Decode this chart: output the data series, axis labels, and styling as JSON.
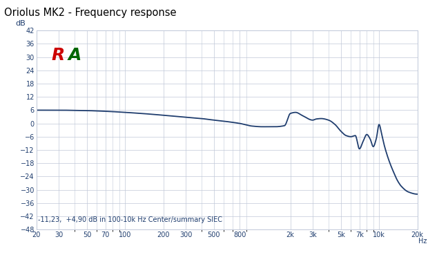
{
  "title": "Oriolus MK2 - Frequency response",
  "ylabel": "dB",
  "xlabel": "Hz",
  "annotation": "-11,23,  +4,90 dB in 100-10k Hz Center/summary SIEC",
  "line_color": "#1f3d6e",
  "background_color": "#ffffff",
  "grid_color": "#c0c8d8",
  "title_color": "#000000",
  "label_color": "#1f3d6e",
  "tick_color": "#1f3d6e",
  "ylim": [
    -48,
    42
  ],
  "yticks": [
    -48,
    -42,
    -36,
    -30,
    -24,
    -18,
    -12,
    -6,
    0,
    6,
    12,
    18,
    24,
    30,
    36,
    42
  ],
  "x_tick_positions": [
    20,
    30,
    50,
    70,
    100,
    200,
    300,
    500,
    800,
    2000,
    3000,
    5000,
    7000,
    10000,
    20000
  ],
  "x_tick_labels": [
    "20",
    "30",
    "50",
    "70",
    "100",
    "200",
    "300",
    "500",
    "800",
    "2k",
    "3k",
    "5k",
    "7k",
    "10k",
    "20k"
  ],
  "freq_points": [
    20,
    25,
    30,
    40,
    50,
    70,
    100,
    150,
    200,
    300,
    400,
    500,
    600,
    700,
    800,
    1000,
    1200,
    1500,
    1800,
    2000,
    2200,
    2500,
    3000,
    3200,
    3500,
    4000,
    4500,
    5000,
    5500,
    6000,
    6500,
    7000,
    7500,
    8000,
    8500,
    9000,
    9500,
    10000,
    10500,
    11000,
    12000,
    13000,
    14000,
    15000,
    17000,
    20000
  ],
  "db_points": [
    6.0,
    6.0,
    6.0,
    5.9,
    5.8,
    5.5,
    5.0,
    4.3,
    3.7,
    2.8,
    2.2,
    1.5,
    1.0,
    0.5,
    0.0,
    -1.2,
    -1.5,
    -1.5,
    -1.0,
    4.5,
    5.0,
    3.5,
    1.5,
    2.0,
    2.2,
    1.5,
    -0.5,
    -3.5,
    -5.5,
    -6.0,
    -5.5,
    -11.5,
    -8.0,
    -5.0,
    -7.0,
    -10.5,
    -7.0,
    -0.5,
    -5.0,
    -10.0,
    -17.0,
    -22.0,
    -26.0,
    -28.5,
    -31.0,
    -32.0
  ]
}
